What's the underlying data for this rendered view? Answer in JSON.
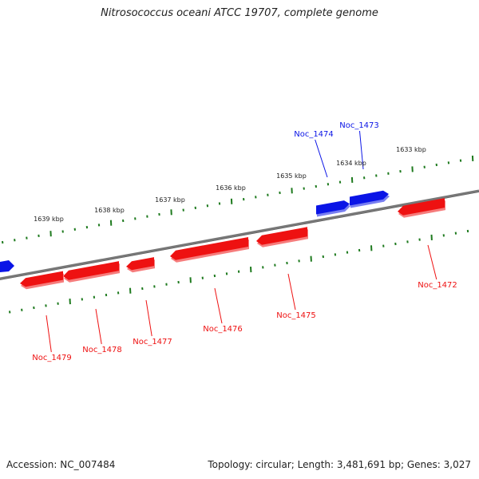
{
  "title": "Nitrosococcus oceani ATCC 19707, complete genome",
  "footer": {
    "accession": "Accession: NC_007484",
    "topology": "Topology: circular; Length: 3,481,691 bp; Genes: 3,027"
  },
  "colors": {
    "forward_gene": "#0a14e6",
    "reverse_gene": "#ee1111",
    "backbone": "#777777",
    "ticks": "#1e7a1e"
  },
  "scale_labels": [
    "1633 kbp",
    "1634 kbp",
    "1635 kbp",
    "1636 kbp",
    "1637 kbp",
    "1638 kbp",
    "1639 kbp"
  ],
  "genes": [
    {
      "name": "Noc_1472",
      "strand": "-"
    },
    {
      "name": "Noc_1473",
      "strand": "+"
    },
    {
      "name": "Noc_1474",
      "strand": "+"
    },
    {
      "name": "Noc_1475",
      "strand": "-"
    },
    {
      "name": "Noc_1476",
      "strand": "-"
    },
    {
      "name": "Noc_1477",
      "strand": "-"
    },
    {
      "name": "Noc_1478",
      "strand": "-"
    },
    {
      "name": "Noc_1479",
      "strand": "-"
    }
  ]
}
